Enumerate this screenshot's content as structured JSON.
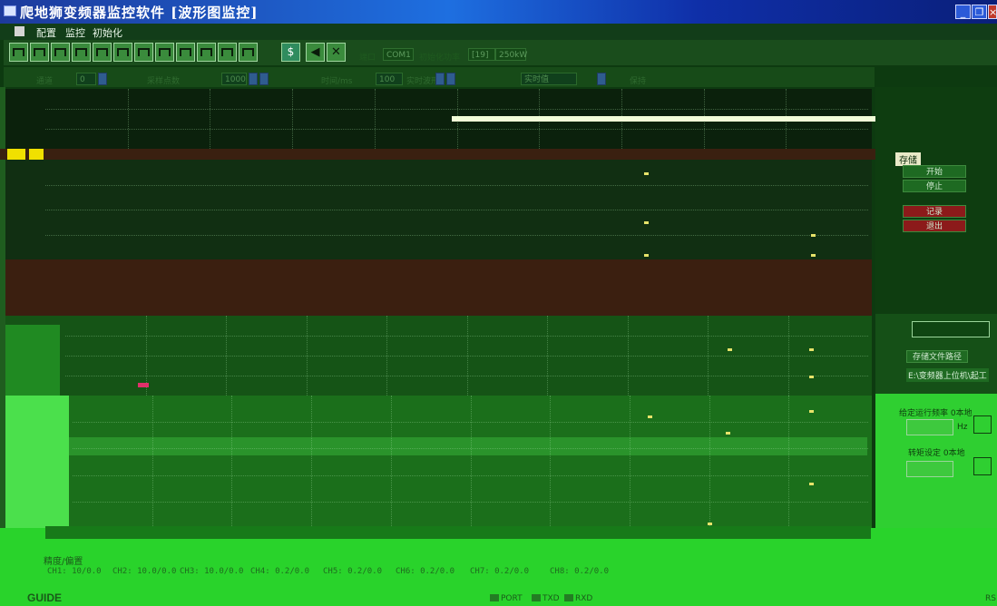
{
  "window": {
    "title": "爬地狮变频器监控软件 [波形图监控]",
    "icon": "app-icon"
  },
  "menu": [
    "配置",
    "监控",
    "初始化"
  ],
  "toolbar": {
    "port_label": "端口",
    "port_value": "COM1",
    "init_label": "初始化功率",
    "init_value": "[19]",
    "power_value": "250kW"
  },
  "params": {
    "channel_label": "通道",
    "channel_value": "0",
    "sample_label": "采样点数",
    "sample_value": "1000",
    "interval_label": "时间/ms",
    "interval_value": "100",
    "mode_label": "实时波形",
    "mode_value": "实时值",
    "hold_label": "保持"
  },
  "right_panel": {
    "save_label": "存储",
    "start_button": "开始",
    "stop_button": "停止",
    "record_button": "记录",
    "exit_button": "退出",
    "path_button": "存储文件路径",
    "path_value": "E:\\变频器上位机\\起工",
    "freq_label": "给定运行频率 0本地",
    "freq_unit": "Hz",
    "torque_label": "转矩设定 0本地"
  },
  "calibration": {
    "title": "精度/偏置",
    "channels": [
      "CH1: 10/0.0",
      "CH2: 10.0/0.0",
      "CH3: 10.0/0.0",
      "CH4: 0.2/0.0",
      "CH5: 0.2/0.0",
      "CH6: 0.2/0.0",
      "CH7: 0.2/0.0",
      "CH8: 0.2/0.0"
    ]
  },
  "status": {
    "brand": "GUIDE",
    "leds": [
      "PORT",
      "TXD",
      "RXD"
    ],
    "corner": "RS"
  },
  "colors": {
    "title_bar": "#1e6fe0",
    "plot_bg": "#0e3a10",
    "accent_green": "#29d32b",
    "marker": "#e7e36a"
  }
}
